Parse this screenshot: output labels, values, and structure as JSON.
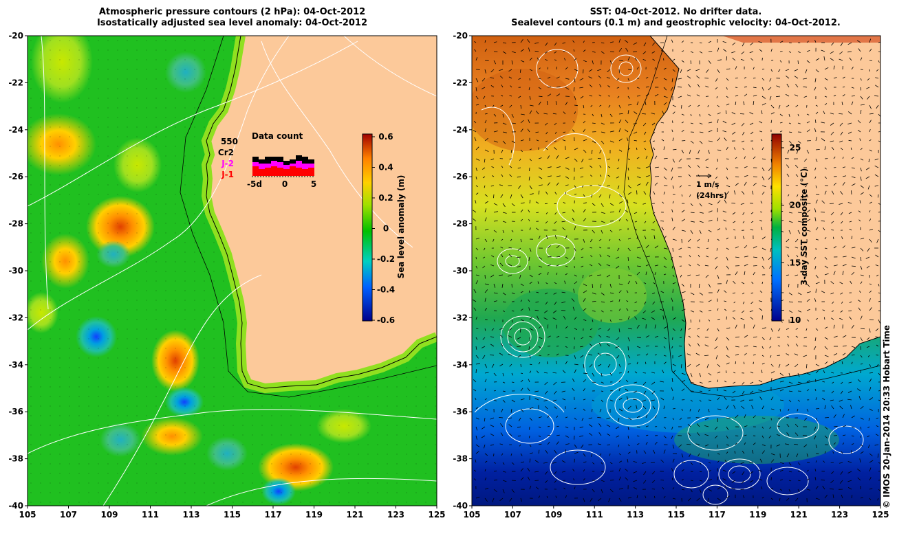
{
  "left_panel": {
    "title_line1": "Atmospheric pressure contours (2 hPa): 04-Oct-2012",
    "title_line2": "Isostatically adjusted sea level anomaly: 04-Oct-2012",
    "colorbar_label": "Sea level anomaly (m)",
    "colorbar_ticks": [
      "0.6",
      "0.4",
      "0.2",
      "0",
      "-0.2",
      "-0.4",
      "-0.6"
    ],
    "inset": {
      "count": "550",
      "title": "Data count",
      "missions": [
        {
          "name": "Cr2",
          "color": "#000000"
        },
        {
          "name": "J-2",
          "color": "#ff00ff"
        },
        {
          "name": "J-1",
          "color": "#ff0000"
        }
      ],
      "axis_ticks": [
        "-5d",
        "0",
        "5"
      ]
    }
  },
  "right_panel": {
    "title_line1": "SST: 04-Oct-2012. No drifter data.",
    "title_line2": "Sealevel contours (0.1 m) and geostrophic velocity: 04-Oct-2012.",
    "colorbar_label": "3-day SST composite (°C)",
    "colorbar_ticks": [
      "25",
      "20",
      "15",
      "10"
    ],
    "velocity_legend": {
      "line1": "1 m/s",
      "line2": "(24hrs)"
    }
  },
  "axes": {
    "lat_ticks": [
      "-20",
      "-22",
      "-24",
      "-26",
      "-28",
      "-30",
      "-32",
      "-34",
      "-36",
      "-38",
      "-40"
    ],
    "lon_ticks": [
      "105",
      "107",
      "109",
      "111",
      "113",
      "115",
      "117",
      "119",
      "121",
      "123",
      "125"
    ]
  },
  "credit": "© IMOS 20-Jan-2014 20:33 Hobart Time",
  "colors": {
    "land": "#fcc99a",
    "sla_scale": [
      "#00008b",
      "#0060ff",
      "#00d0c0",
      "#00c000",
      "#80e000",
      "#ffd000",
      "#ff8000",
      "#a00000"
    ],
    "sst_scale": [
      "#00008b",
      "#0090ff",
      "#00c050",
      "#a0e000",
      "#ffc000",
      "#c04000",
      "#800000"
    ]
  }
}
